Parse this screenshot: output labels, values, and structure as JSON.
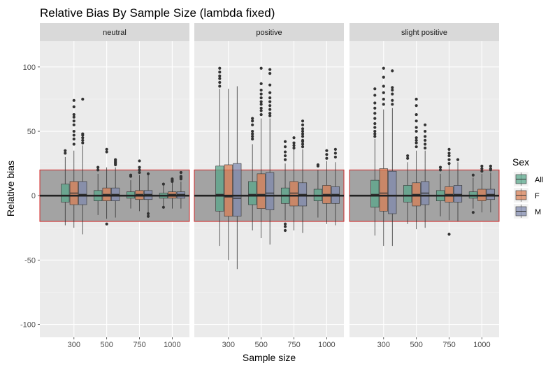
{
  "chart_data": {
    "type": "boxplot",
    "title": "Relative Bias By Sample Size (lambda fixed)",
    "xlabel": "Sample size",
    "ylabel": "Relative bias",
    "ylim": [
      -110,
      120
    ],
    "yticks": [
      -100,
      -50,
      0,
      50,
      100
    ],
    "categories": [
      "300",
      "500",
      "750",
      "1000"
    ],
    "grid": true,
    "reference_band": {
      "ymin": -20,
      "ymax": 20,
      "fill": "#a3a3a3",
      "stroke": "#d12a2a"
    },
    "reference_line": 0,
    "legend": {
      "title": "Sex",
      "position": "right",
      "entries": [
        {
          "name": "All",
          "color": "#52a587"
        },
        {
          "name": "F",
          "color": "#d97a4e"
        },
        {
          "name": "M",
          "color": "#7c86ad"
        }
      ]
    },
    "panels": [
      {
        "label": "neutral",
        "groups": [
          {
            "category": "300",
            "boxes": [
              {
                "series": "All",
                "whisker_low": -23,
                "q1": -5,
                "median": 0,
                "q3": 9,
                "whisker_high": 30,
                "outliers": [
                  33,
                  35
                ]
              },
              {
                "series": "F",
                "whisker_low": -25,
                "q1": -7,
                "median": 2,
                "q3": 11,
                "whisker_high": 35,
                "outliers": [
                  40,
                  44,
                  47,
                  50,
                  55,
                  58,
                  61,
                  63,
                  69,
                  74
                ]
              },
              {
                "series": "M",
                "whisker_low": -30,
                "q1": -7,
                "median": 1,
                "q3": 11,
                "whisker_high": 39,
                "outliers": [
                  41,
                  43,
                  45,
                  47,
                  48,
                  75
                ]
              }
            ]
          },
          {
            "category": "500",
            "boxes": [
              {
                "series": "All",
                "whisker_low": -15,
                "q1": -4,
                "median": 0,
                "q3": 4,
                "whisker_high": 17,
                "outliers": [
                  20,
                  22
                ]
              },
              {
                "series": "F",
                "whisker_low": -18,
                "q1": -4,
                "median": 1,
                "q3": 6,
                "whisker_high": 22,
                "outliers": [
                  -22,
                  34,
                  36
                ]
              },
              {
                "series": "M",
                "whisker_low": -17,
                "q1": -4,
                "median": 1,
                "q3": 6,
                "whisker_high": 22,
                "outliers": [
                  24,
                  25,
                  26,
                  27,
                  28
                ]
              }
            ]
          },
          {
            "category": "750",
            "boxes": [
              {
                "series": "All",
                "whisker_low": -10,
                "q1": -2,
                "median": 0,
                "q3": 3,
                "whisker_high": 12,
                "outliers": [
                  15,
                  16
                ]
              },
              {
                "series": "F",
                "whisker_low": -12,
                "q1": -3,
                "median": 1,
                "q3": 4,
                "whisker_high": 16,
                "outliers": [
                  18,
                  20,
                  22,
                  27
                ]
              },
              {
                "series": "M",
                "whisker_low": -13,
                "q1": -3,
                "median": 1,
                "q3": 4,
                "whisker_high": 16,
                "outliers": [
                  -16,
                  -14,
                  17
                ]
              }
            ]
          },
          {
            "category": "1000",
            "boxes": [
              {
                "series": "All",
                "whisker_low": -8,
                "q1": -2,
                "median": 0,
                "q3": 2,
                "whisker_high": 8,
                "outliers": [
                  -9,
                  9
                ]
              },
              {
                "series": "F",
                "whisker_low": -10,
                "q1": -2,
                "median": 1,
                "q3": 3,
                "whisker_high": 10,
                "outliers": [
                  11,
                  12,
                  13
                ]
              },
              {
                "series": "M",
                "whisker_low": -10,
                "q1": -2,
                "median": 1,
                "q3": 3,
                "whisker_high": 11,
                "outliers": [
                  13,
                  14,
                  15,
                  18
                ]
              }
            ]
          }
        ]
      },
      {
        "label": "positive",
        "groups": [
          {
            "category": "300",
            "boxes": [
              {
                "series": "All",
                "whisker_low": -39,
                "q1": -12,
                "median": 1,
                "q3": 23,
                "whisker_high": 83,
                "outliers": [
                  85,
                  88,
                  91,
                  93,
                  96,
                  99
                ]
              },
              {
                "series": "F",
                "whisker_low": -50,
                "q1": -16,
                "median": -1,
                "q3": 24,
                "whisker_high": 83,
                "outliers": []
              },
              {
                "series": "M",
                "whisker_low": -57,
                "q1": -16,
                "median": -2,
                "q3": 25,
                "whisker_high": 85,
                "outliers": []
              }
            ]
          },
          {
            "category": "500",
            "boxes": [
              {
                "series": "All",
                "whisker_low": -27,
                "q1": -7,
                "median": 1,
                "q3": 11,
                "whisker_high": 40,
                "outliers": [
                  44,
                  46,
                  48,
                  50,
                  55,
                  58,
                  60
                ]
              },
              {
                "series": "F",
                "whisker_low": -33,
                "q1": -10,
                "median": 1,
                "q3": 17,
                "whisker_high": 60,
                "outliers": [
                  63,
                  66,
                  68,
                  71,
                  73,
                  76,
                  79,
                  82,
                  87,
                  99
                ]
              },
              {
                "series": "M",
                "whisker_low": -38,
                "q1": -11,
                "median": 2,
                "q3": 18,
                "whisker_high": 60,
                "outliers": [
                  62,
                  64,
                  67,
                  70,
                  73,
                  76,
                  80,
                  86,
                  95,
                  98
                ]
              }
            ]
          },
          {
            "category": "750",
            "boxes": [
              {
                "series": "All",
                "whisker_low": -19,
                "q1": -6,
                "median": 0,
                "q3": 6,
                "whisker_high": 25,
                "outliers": [
                  -27,
                  -24,
                  -22,
                  28,
                  31,
                  34,
                  38,
                  42
                ]
              },
              {
                "series": "F",
                "whisker_low": -27,
                "q1": -8,
                "median": 2,
                "q3": 11,
                "whisker_high": 36,
                "outliers": [
                  37,
                  39,
                  41,
                  45
                ]
              },
              {
                "series": "M",
                "whisker_low": -29,
                "q1": -8,
                "median": 1,
                "q3": 10,
                "whisker_high": 36,
                "outliers": [
                  38,
                  40,
                  42,
                  43,
                  46,
                  48,
                  50,
                  52,
                  55,
                  58
                ]
              }
            ]
          },
          {
            "category": "1000",
            "boxes": [
              {
                "series": "All",
                "whisker_low": -17,
                "q1": -4,
                "median": 0,
                "q3": 5,
                "whisker_high": 20,
                "outliers": [
                  23,
                  24
                ]
              },
              {
                "series": "F",
                "whisker_low": -22,
                "q1": -6,
                "median": 1,
                "q3": 8,
                "whisker_high": 27,
                "outliers": [
                  29,
                  32,
                  35
                ]
              },
              {
                "series": "M",
                "whisker_low": -23,
                "q1": -6,
                "median": 1,
                "q3": 7,
                "whisker_high": 26,
                "outliers": [
                  30,
                  33,
                  36
                ]
              }
            ]
          }
        ]
      },
      {
        "label": "slight positive",
        "groups": [
          {
            "category": "300",
            "boxes": [
              {
                "series": "All",
                "whisker_low": -31,
                "q1": -9,
                "median": 1,
                "q3": 12,
                "whisker_high": 44,
                "outliers": [
                  46,
                  48,
                  50,
                  53,
                  56,
                  60,
                  64,
                  68,
                  72,
                  78,
                  83
                ]
              },
              {
                "series": "F",
                "whisker_low": -39,
                "q1": -12,
                "median": 2,
                "q3": 21,
                "whisker_high": 67,
                "outliers": [
                  71,
                  75,
                  80,
                  85,
                  92,
                  99
                ]
              },
              {
                "series": "M",
                "whisker_low": -39,
                "q1": -14,
                "median": 0,
                "q3": 19,
                "whisker_high": 68,
                "outliers": [
                  71,
                  74,
                  79,
                  82,
                  84,
                  97
                ]
              }
            ]
          },
          {
            "category": "500",
            "boxes": [
              {
                "series": "All",
                "whisker_low": -22,
                "q1": -5,
                "median": 0,
                "q3": 8,
                "whisker_high": 26,
                "outliers": [
                  29,
                  31
                ]
              },
              {
                "series": "F",
                "whisker_low": -26,
                "q1": -8,
                "median": 1,
                "q3": 10,
                "whisker_high": 35,
                "outliers": [
                  38,
                  41,
                  43,
                  45,
                  50,
                  53,
                  58,
                  63,
                  70,
                  75
                ]
              },
              {
                "series": "M",
                "whisker_low": -25,
                "q1": -7,
                "median": 2,
                "q3": 11,
                "whisker_high": 35,
                "outliers": [
                  37,
                  40,
                  43,
                  46,
                  50,
                  55
                ]
              }
            ]
          },
          {
            "category": "750",
            "boxes": [
              {
                "series": "All",
                "whisker_low": -16,
                "q1": -4,
                "median": 0,
                "q3": 4,
                "whisker_high": 17,
                "outliers": [
                  20,
                  22
                ]
              },
              {
                "series": "F",
                "whisker_low": -19,
                "q1": -5,
                "median": 1,
                "q3": 7,
                "whisker_high": 24,
                "outliers": [
                  -30,
                  25,
                  28,
                  31,
                  33,
                  36
                ]
              },
              {
                "series": "M",
                "whisker_low": -20,
                "q1": -5,
                "median": 1,
                "q3": 8,
                "whisker_high": 26,
                "outliers": [
                  28
                ]
              }
            ]
          },
          {
            "category": "1000",
            "boxes": [
              {
                "series": "All",
                "whisker_low": -10,
                "q1": -2,
                "median": 0,
                "q3": 3,
                "whisker_high": 14,
                "outliers": [
                  -13,
                  16
                ]
              },
              {
                "series": "F",
                "whisker_low": -13,
                "q1": -4,
                "median": 0,
                "q3": 5,
                "whisker_high": 17,
                "outliers": [
                  19,
                  21,
                  23
                ]
              },
              {
                "series": "M",
                "whisker_low": -13,
                "q1": -3,
                "median": 1,
                "q3": 5,
                "whisker_high": 18,
                "outliers": [
                  20,
                  21,
                  23
                ]
              }
            ]
          }
        ]
      }
    ]
  }
}
